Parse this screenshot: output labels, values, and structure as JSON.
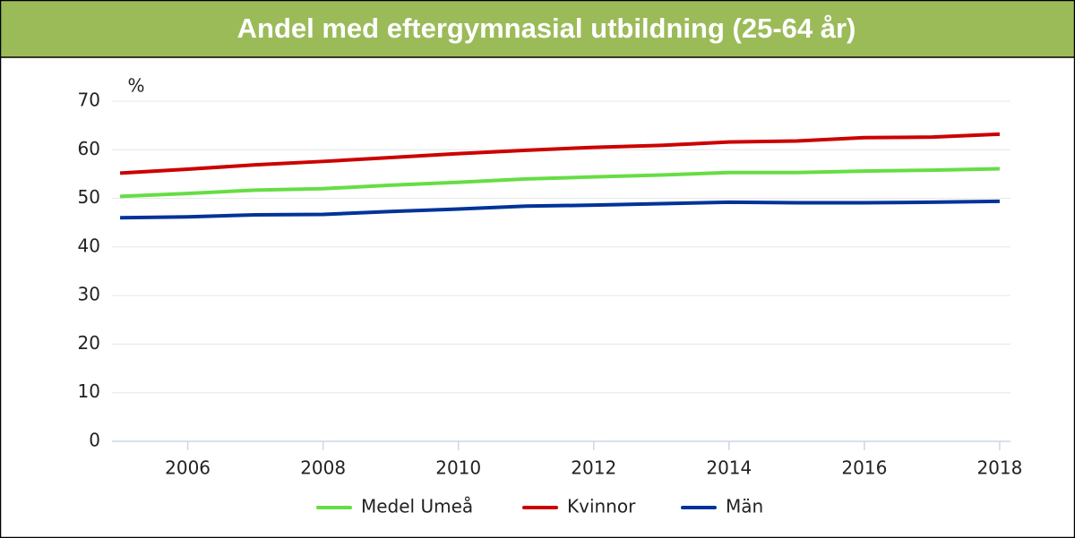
{
  "chart_data": {
    "type": "line",
    "title": "Andel med eftergymnasial utbildning (25-64 år)",
    "y_label": "%",
    "x": [
      2005,
      2006,
      2007,
      2008,
      2009,
      2010,
      2011,
      2012,
      2013,
      2014,
      2015,
      2016,
      2017,
      2018
    ],
    "series": [
      {
        "name": "Medel Umeå",
        "color": "#66dd44",
        "values": [
          50.4,
          51.0,
          51.7,
          52.0,
          52.7,
          53.3,
          54.0,
          54.4,
          54.8,
          55.3,
          55.3,
          55.6,
          55.8,
          56.1
        ]
      },
      {
        "name": "Kvinnor",
        "color": "#cc0000",
        "values": [
          55.2,
          56.0,
          56.9,
          57.6,
          58.4,
          59.2,
          59.9,
          60.5,
          60.9,
          61.6,
          61.8,
          62.5,
          62.6,
          63.2
        ]
      },
      {
        "name": "Män",
        "color": "#003399",
        "values": [
          46.0,
          46.2,
          46.6,
          46.7,
          47.3,
          47.8,
          48.4,
          48.6,
          48.9,
          49.2,
          49.1,
          49.1,
          49.2,
          49.4
        ]
      }
    ],
    "xlim": [
      2004.88,
      2018.16
    ],
    "xticks": [
      2006,
      2008,
      2010,
      2012,
      2014,
      2016,
      2018
    ],
    "ylim": [
      0,
      70
    ],
    "yticks": [
      0,
      10,
      20,
      30,
      40,
      50,
      60,
      70
    ],
    "grid": true
  }
}
